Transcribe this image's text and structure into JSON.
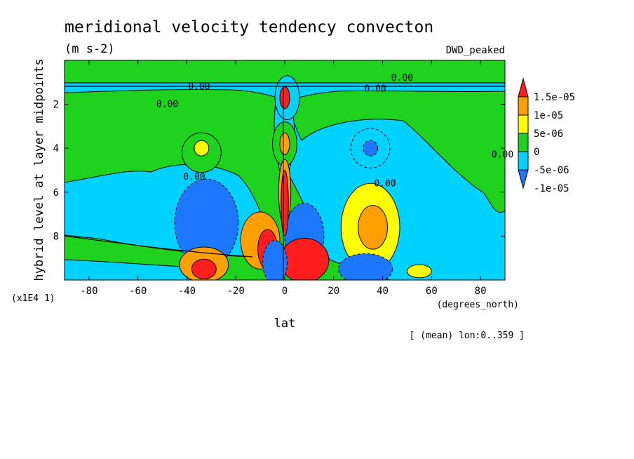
{
  "chart_data": {
    "type": "heatmap",
    "title": "meridional velocity tendency convecton",
    "units": "(m s-2)",
    "run_label": "DWD_peaked",
    "xlabel": "lat",
    "x_units": "(degrees_north)",
    "ylabel": "hybrid level at layer midpoints",
    "y_scale_note": "(x1E4 1)",
    "footnote": "[ (mean) lon:0..359 ]",
    "xlim": [
      -90,
      90
    ],
    "ylim": [
      10,
      0
    ],
    "x_ticks": [
      -80,
      -60,
      -40,
      -20,
      0,
      20,
      40,
      60,
      80
    ],
    "x_tick_labels": [
      "-80",
      "-60",
      "-40",
      "-20",
      "0",
      "20",
      "40",
      "60",
      "80"
    ],
    "y_ticks": [
      2,
      4,
      6,
      8
    ],
    "y_tick_labels": [
      "2",
      "4",
      "6",
      "8"
    ],
    "colorbar": {
      "levels": [
        -1e-05,
        -5e-06,
        0,
        5e-06,
        1e-05,
        1.5e-05
      ],
      "labels": [
        "1.5e-05",
        "1e-05",
        "5e-06",
        "0",
        "-5e-06",
        "-1e-05"
      ],
      "colors": [
        "#1e78ff",
        "#00d2ff",
        "#1ed21e",
        "#ffff00",
        "#ffa000",
        "#ff1e1e"
      ]
    },
    "background_color": "#1ed21e",
    "contour_labels": [
      {
        "text": "0.00",
        "lat": -35,
        "lev": 1.2
      },
      {
        "text": "0.00",
        "lat": -48,
        "lev": 2.0
      },
      {
        "text": "0.00",
        "lat": 37,
        "lev": 1.3
      },
      {
        "text": "0.00",
        "lat": 48,
        "lev": 0.8
      },
      {
        "text": "0.00",
        "lat": -37,
        "lev": 5.3
      },
      {
        "text": "0.00",
        "lat": 41,
        "lev": 5.6
      },
      {
        "text": "0.00",
        "lat": 89,
        "lev": 4.3
      }
    ],
    "features": [
      {
        "kind": "ellipse",
        "lat": 1,
        "lev": 1.7,
        "rlat": 5,
        "rlev": 1.0,
        "value": 0.0,
        "color": "#00d2ff"
      },
      {
        "kind": "ellipse",
        "lat": 0,
        "lev": 1.7,
        "rlat": 2,
        "rlev": 0.5,
        "value": 1.5e-05,
        "color": "#ff1e1e"
      },
      {
        "kind": "ellipse",
        "lat": 0,
        "lev": 3.8,
        "rlat": 5,
        "rlev": 1.0,
        "value": 2e-06,
        "color": "#1ed21e"
      },
      {
        "kind": "ellipse",
        "lat": 0,
        "lev": 3.8,
        "rlat": 2,
        "rlev": 0.5,
        "value": 8e-06,
        "color": "#ffa000"
      },
      {
        "kind": "ellipse",
        "lat": -34,
        "lev": 4.2,
        "rlat": 8,
        "rlev": 0.9,
        "value": 2e-06,
        "color": "#1ed21e"
      },
      {
        "kind": "ellipse",
        "lat": -34,
        "lev": 4.0,
        "rlat": 3,
        "rlev": 0.35,
        "value": 6e-06,
        "color": "#ffff00"
      },
      {
        "kind": "ellipse",
        "lat": 35,
        "lev": 4.0,
        "rlat": 8,
        "rlev": 0.9,
        "value": -3e-06,
        "color": "#00d2ff"
      },
      {
        "kind": "ellipse",
        "lat": 35,
        "lev": 4.0,
        "rlat": 3,
        "rlev": 0.35,
        "value": -6e-06,
        "color": "#1e78ff"
      },
      {
        "kind": "ellipse",
        "lat": -32,
        "lev": 7.4,
        "rlat": 13,
        "rlev": 2.0,
        "value": -5e-06,
        "color": "#1e78ff"
      },
      {
        "kind": "ellipse",
        "lat": 35,
        "lev": 7.6,
        "rlat": 12,
        "rlev": 2.0,
        "value": 5e-06,
        "color": "#ffff00"
      },
      {
        "kind": "ellipse",
        "lat": 36,
        "lev": 7.6,
        "rlat": 6,
        "rlev": 1.0,
        "value": 8e-06,
        "color": "#ffa000"
      },
      {
        "kind": "ellipse",
        "lat": -33,
        "lev": 9.3,
        "rlat": 10,
        "rlev": 0.8,
        "value": 1e-05,
        "color": "#ffa000"
      },
      {
        "kind": "ellipse",
        "lat": -33,
        "lev": 9.5,
        "rlat": 5,
        "rlev": 0.45,
        "value": 1.5e-05,
        "color": "#ff1e1e"
      },
      {
        "kind": "ellipse",
        "lat": 33,
        "lev": 9.5,
        "rlat": 11,
        "rlev": 0.7,
        "value": -1e-05,
        "color": "#1e78ff"
      },
      {
        "kind": "ellipse",
        "lat": 55,
        "lev": 9.6,
        "rlat": 5,
        "rlev": 0.3,
        "value": 6e-06,
        "color": "#ffff00"
      },
      {
        "kind": "ellipse",
        "lat": -10,
        "lev": 8.2,
        "rlat": 8,
        "rlev": 1.3,
        "value": 1e-05,
        "color": "#ffa000"
      },
      {
        "kind": "ellipse",
        "lat": -7,
        "lev": 8.6,
        "rlat": 4,
        "rlev": 0.9,
        "value": 1.5e-05,
        "color": "#ff1e1e"
      },
      {
        "kind": "ellipse",
        "lat": 8,
        "lev": 8.0,
        "rlat": 8,
        "rlev": 1.5,
        "value": -1e-05,
        "color": "#1e78ff"
      },
      {
        "kind": "ellipse",
        "lat": 8,
        "lev": 9.1,
        "rlat": 10,
        "rlev": 1.0,
        "value": 1.5e-05,
        "color": "#ff1e1e"
      },
      {
        "kind": "ellipse",
        "lat": -4,
        "lev": 9.2,
        "rlat": 5,
        "rlev": 1.0,
        "value": -1e-05,
        "color": "#1e78ff"
      },
      {
        "kind": "ellipse",
        "lat": 0,
        "lev": 6.0,
        "rlat": 2.5,
        "rlev": 1.5,
        "value": 1e-05,
        "color": "#ffa000"
      },
      {
        "kind": "ellipse",
        "lat": 0,
        "lev": 6.5,
        "rlat": 1.5,
        "rlev": 1.5,
        "value": 1.5e-05,
        "color": "#ff1e1e"
      }
    ]
  }
}
